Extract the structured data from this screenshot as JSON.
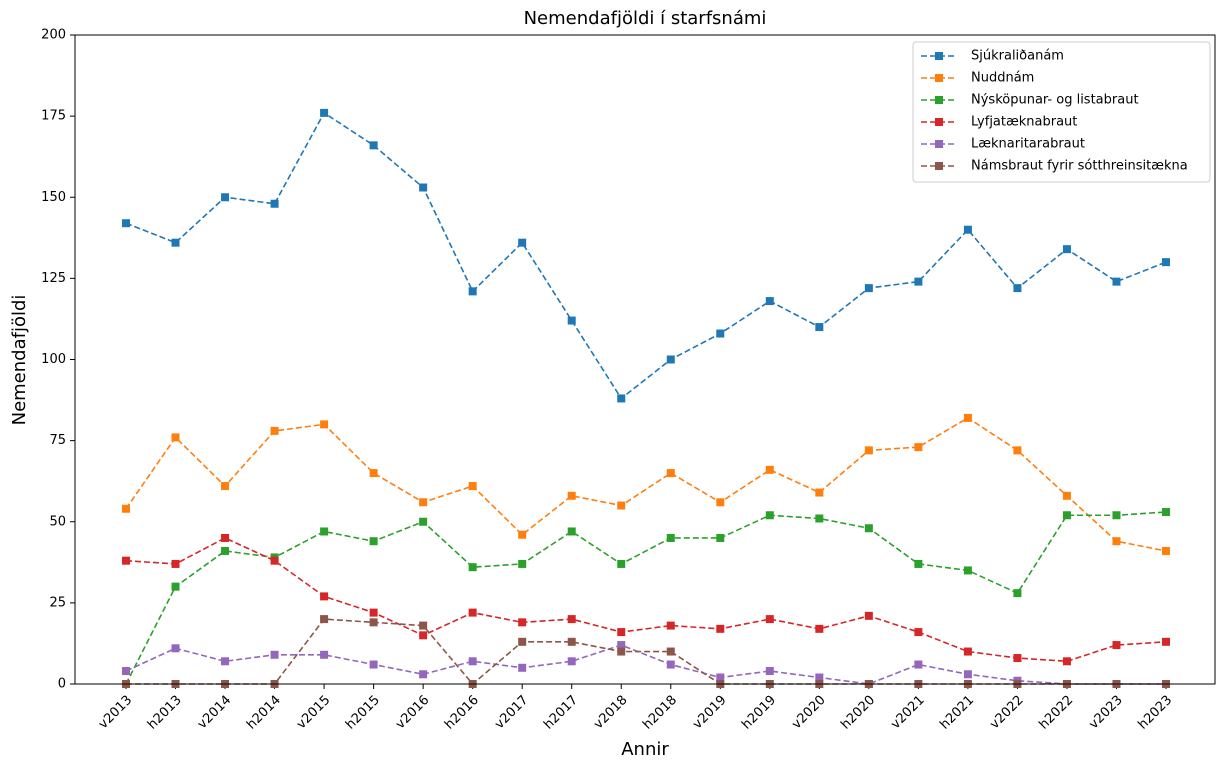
{
  "chart_data": {
    "type": "line",
    "title": "Nemendafjöldi í starfsnámi",
    "xlabel": "Annir",
    "ylabel": "Nemendafjöldi",
    "categories": [
      "v2013",
      "h2013",
      "v2014",
      "h2014",
      "v2015",
      "h2015",
      "v2016",
      "h2016",
      "v2017",
      "h2017",
      "v2018",
      "h2018",
      "v2019",
      "h2019",
      "v2020",
      "h2020",
      "v2021",
      "h2021",
      "v2022",
      "h2022",
      "v2023",
      "h2023"
    ],
    "series": [
      {
        "name": "Sjúkraliðanám",
        "color": "#1f77b4",
        "values": [
          142,
          136,
          150,
          148,
          176,
          166,
          153,
          121,
          136,
          112,
          88,
          100,
          108,
          118,
          110,
          122,
          124,
          140,
          122,
          134,
          124,
          130
        ]
      },
      {
        "name": "Nuddnám",
        "color": "#ff7f0e",
        "values": [
          54,
          76,
          61,
          78,
          80,
          65,
          56,
          61,
          46,
          58,
          55,
          65,
          56,
          66,
          59,
          72,
          73,
          82,
          72,
          58,
          44,
          41
        ]
      },
      {
        "name": "Nýsköpunar- og listabraut",
        "color": "#2ca02c",
        "values": [
          0,
          30,
          41,
          39,
          47,
          44,
          50,
          36,
          37,
          47,
          37,
          45,
          45,
          52,
          51,
          48,
          37,
          35,
          28,
          52,
          52,
          53
        ]
      },
      {
        "name": "Lyfjatæknabraut",
        "color": "#d62728",
        "values": [
          38,
          37,
          45,
          38,
          27,
          22,
          15,
          22,
          19,
          20,
          16,
          18,
          17,
          20,
          17,
          21,
          16,
          10,
          8,
          7,
          12,
          13
        ]
      },
      {
        "name": "Læknaritarabraut",
        "color": "#9467bd",
        "values": [
          4,
          11,
          7,
          9,
          9,
          6,
          3,
          7,
          5,
          7,
          12,
          6,
          2,
          4,
          2,
          0,
          6,
          3,
          1,
          0,
          0,
          0
        ]
      },
      {
        "name": "Námsbraut fyrir sótthreinsitækna",
        "color": "#8c564b",
        "values": [
          0,
          0,
          0,
          0,
          20,
          19,
          18,
          0,
          13,
          13,
          10,
          10,
          0,
          0,
          0,
          0,
          0,
          0,
          0,
          0,
          0,
          0
        ]
      }
    ],
    "ylim": [
      0,
      200
    ],
    "yticks": [
      0,
      25,
      50,
      75,
      100,
      125,
      150,
      175,
      200
    ],
    "legend": "upper right"
  }
}
